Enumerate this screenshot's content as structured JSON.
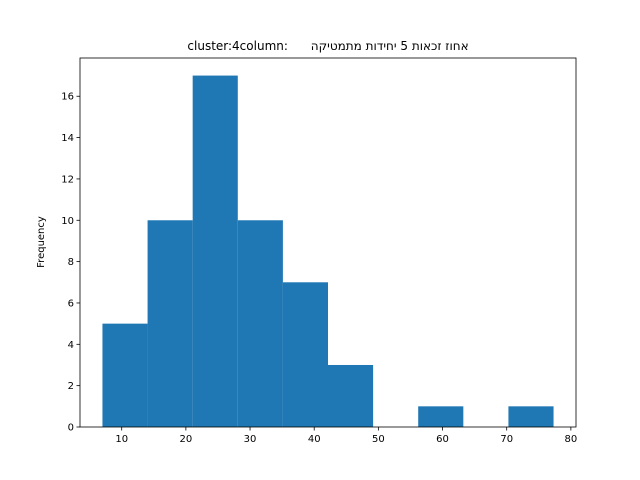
{
  "chart_data": {
    "type": "histogram",
    "title": "cluster:4column:      אחוז זכאות 5 יחידות מתמטיקה",
    "y_label": "Frequency",
    "bins": [
      7.0,
      14.03,
      21.06,
      28.09,
      35.12,
      42.15,
      49.18,
      56.21,
      63.24,
      70.27,
      77.3
    ],
    "values": [
      5,
      10,
      17,
      10,
      7,
      3,
      0,
      1,
      0,
      1
    ],
    "color": "#1f77b4",
    "xlim": [
      3.5,
      80.8
    ],
    "xticks": [
      10,
      20,
      30,
      40,
      50,
      60,
      70,
      80
    ],
    "ylim": [
      0,
      17.85
    ],
    "yticks": [
      0,
      2,
      4,
      6,
      8,
      10,
      12,
      14,
      16
    ]
  }
}
